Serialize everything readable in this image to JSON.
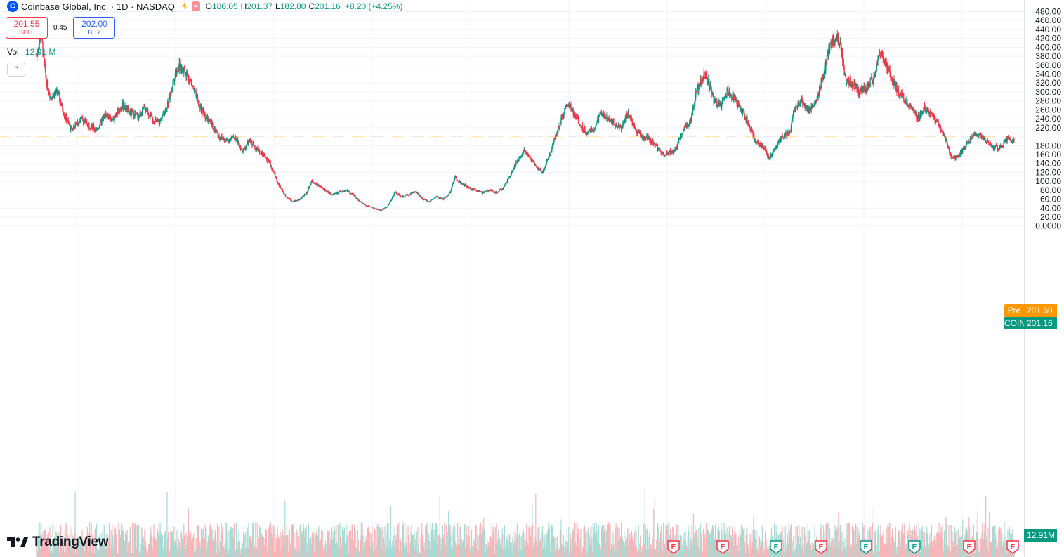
{
  "legend": {
    "logo_letter": "C",
    "symbol": "Coinbase Global, Inc. · 1D · NASDAQ",
    "o_label": "O",
    "o_value": "186.05",
    "h_label": "H",
    "h_value": "201.37",
    "l_label": "L",
    "l_value": "182.80",
    "c_label": "C",
    "c_value": "201.16",
    "change": "+8.20 (+4.25%)",
    "sun_icon": "☀",
    "wave_icon": "≈"
  },
  "trade": {
    "sell_price": "201.55",
    "sell_label": "SELL",
    "spread": "0.45",
    "buy_price": "202.00",
    "buy_label": "BUY"
  },
  "volume_legend": {
    "label": "Vol",
    "value": "12.91 M"
  },
  "collapse_icon": "⌃",
  "branding": {
    "name": "TradingView"
  },
  "price_axis": {
    "ticks": [
      "480.00",
      "460.00",
      "440.00",
      "420.00",
      "400.00",
      "380.00",
      "360.00",
      "340.00",
      "320.00",
      "300.00",
      "280.00",
      "260.00",
      "240.00",
      "220.00",
      "180.00",
      "160.00",
      "140.00",
      "120.00",
      "100.00",
      "80.00",
      "60.00",
      "40.00",
      "20.00",
      "0.0000"
    ]
  },
  "labels": {
    "pre_tag": "Pre",
    "pre_value": "201.60",
    "coin_tag": "COIN",
    "coin_value": "201.16",
    "vol_value": "12.91M"
  },
  "earnings_marker_text": "E",
  "colors": {
    "up": "#089981",
    "down": "#f23645",
    "vol_up": "#a5dbd3",
    "vol_down": "#f9b4b8",
    "pre": "#ff9800",
    "grid": "#f0f3fa"
  },
  "chart_data": {
    "type": "candlestick",
    "symbol": "COIN",
    "interval": "1D",
    "ylim": [
      0,
      480
    ],
    "grid": true,
    "last_close": 201.16,
    "pre_market": 201.6,
    "last_volume": "12.91M",
    "price_path": [
      [
        0,
        380
      ],
      [
        2,
        430
      ],
      [
        4,
        330
      ],
      [
        6,
        290
      ],
      [
        9,
        300
      ],
      [
        12,
        250
      ],
      [
        15,
        215
      ],
      [
        19,
        240
      ],
      [
        23,
        225
      ],
      [
        26,
        215
      ],
      [
        30,
        250
      ],
      [
        33,
        235
      ],
      [
        37,
        270
      ],
      [
        40,
        255
      ],
      [
        44,
        245
      ],
      [
        47,
        265
      ],
      [
        50,
        240
      ],
      [
        53,
        230
      ],
      [
        57,
        275
      ],
      [
        60,
        345
      ],
      [
        62,
        360
      ],
      [
        64,
        350
      ],
      [
        67,
        320
      ],
      [
        70,
        275
      ],
      [
        73,
        245
      ],
      [
        76,
        225
      ],
      [
        79,
        200
      ],
      [
        82,
        190
      ],
      [
        86,
        200
      ],
      [
        89,
        165
      ],
      [
        92,
        190
      ],
      [
        95,
        175
      ],
      [
        98,
        160
      ],
      [
        101,
        140
      ],
      [
        103,
        115
      ],
      [
        105,
        90
      ],
      [
        108,
        65
      ],
      [
        111,
        55
      ],
      [
        114,
        60
      ],
      [
        117,
        75
      ],
      [
        119,
        100
      ],
      [
        122,
        90
      ],
      [
        125,
        80
      ],
      [
        128,
        70
      ],
      [
        131,
        75
      ],
      [
        134,
        80
      ],
      [
        137,
        70
      ],
      [
        140,
        55
      ],
      [
        143,
        45
      ],
      [
        146,
        40
      ],
      [
        149,
        35
      ],
      [
        152,
        45
      ],
      [
        155,
        75
      ],
      [
        158,
        65
      ],
      [
        161,
        70
      ],
      [
        164,
        78
      ],
      [
        167,
        60
      ],
      [
        170,
        55
      ],
      [
        173,
        65
      ],
      [
        176,
        60
      ],
      [
        179,
        75
      ],
      [
        181,
        110
      ],
      [
        184,
        95
      ],
      [
        187,
        85
      ],
      [
        190,
        80
      ],
      [
        193,
        75
      ],
      [
        196,
        80
      ],
      [
        199,
        75
      ],
      [
        202,
        85
      ],
      [
        205,
        115
      ],
      [
        208,
        145
      ],
      [
        211,
        170
      ],
      [
        214,
        150
      ],
      [
        217,
        130
      ],
      [
        219,
        120
      ],
      [
        222,
        160
      ],
      [
        225,
        210
      ],
      [
        228,
        250
      ],
      [
        230,
        275
      ],
      [
        232,
        255
      ],
      [
        235,
        230
      ],
      [
        238,
        210
      ],
      [
        241,
        215
      ],
      [
        244,
        250
      ],
      [
        247,
        245
      ],
      [
        250,
        230
      ],
      [
        253,
        220
      ],
      [
        256,
        255
      ],
      [
        259,
        215
      ],
      [
        262,
        200
      ],
      [
        265,
        195
      ],
      [
        268,
        180
      ],
      [
        271,
        160
      ],
      [
        274,
        165
      ],
      [
        277,
        175
      ],
      [
        280,
        220
      ],
      [
        283,
        235
      ],
      [
        285,
        290
      ],
      [
        287,
        320
      ],
      [
        289,
        340
      ],
      [
        291,
        320
      ],
      [
        293,
        280
      ],
      [
        296,
        270
      ],
      [
        299,
        305
      ],
      [
        302,
        285
      ],
      [
        305,
        260
      ],
      [
        308,
        230
      ],
      [
        311,
        190
      ],
      [
        314,
        180
      ],
      [
        317,
        150
      ],
      [
        320,
        180
      ],
      [
        323,
        200
      ],
      [
        326,
        210
      ],
      [
        328,
        265
      ],
      [
        331,
        280
      ],
      [
        334,
        260
      ],
      [
        337,
        270
      ],
      [
        340,
        330
      ],
      [
        343,
        395
      ],
      [
        346,
        430
      ],
      [
        348,
        400
      ],
      [
        350,
        330
      ],
      [
        353,
        320
      ],
      [
        356,
        300
      ],
      [
        359,
        310
      ],
      [
        362,
        330
      ],
      [
        365,
        385
      ],
      [
        368,
        360
      ],
      [
        371,
        320
      ],
      [
        373,
        300
      ],
      [
        376,
        280
      ],
      [
        379,
        260
      ],
      [
        381,
        240
      ],
      [
        384,
        265
      ],
      [
        387,
        250
      ],
      [
        390,
        230
      ],
      [
        393,
        200
      ],
      [
        396,
        150
      ],
      [
        399,
        155
      ],
      [
        402,
        180
      ],
      [
        405,
        200
      ],
      [
        408,
        205
      ],
      [
        411,
        190
      ],
      [
        414,
        175
      ],
      [
        417,
        175
      ],
      [
        420,
        195
      ],
      [
        423,
        190
      ]
    ],
    "earnings_markers": 8
  }
}
